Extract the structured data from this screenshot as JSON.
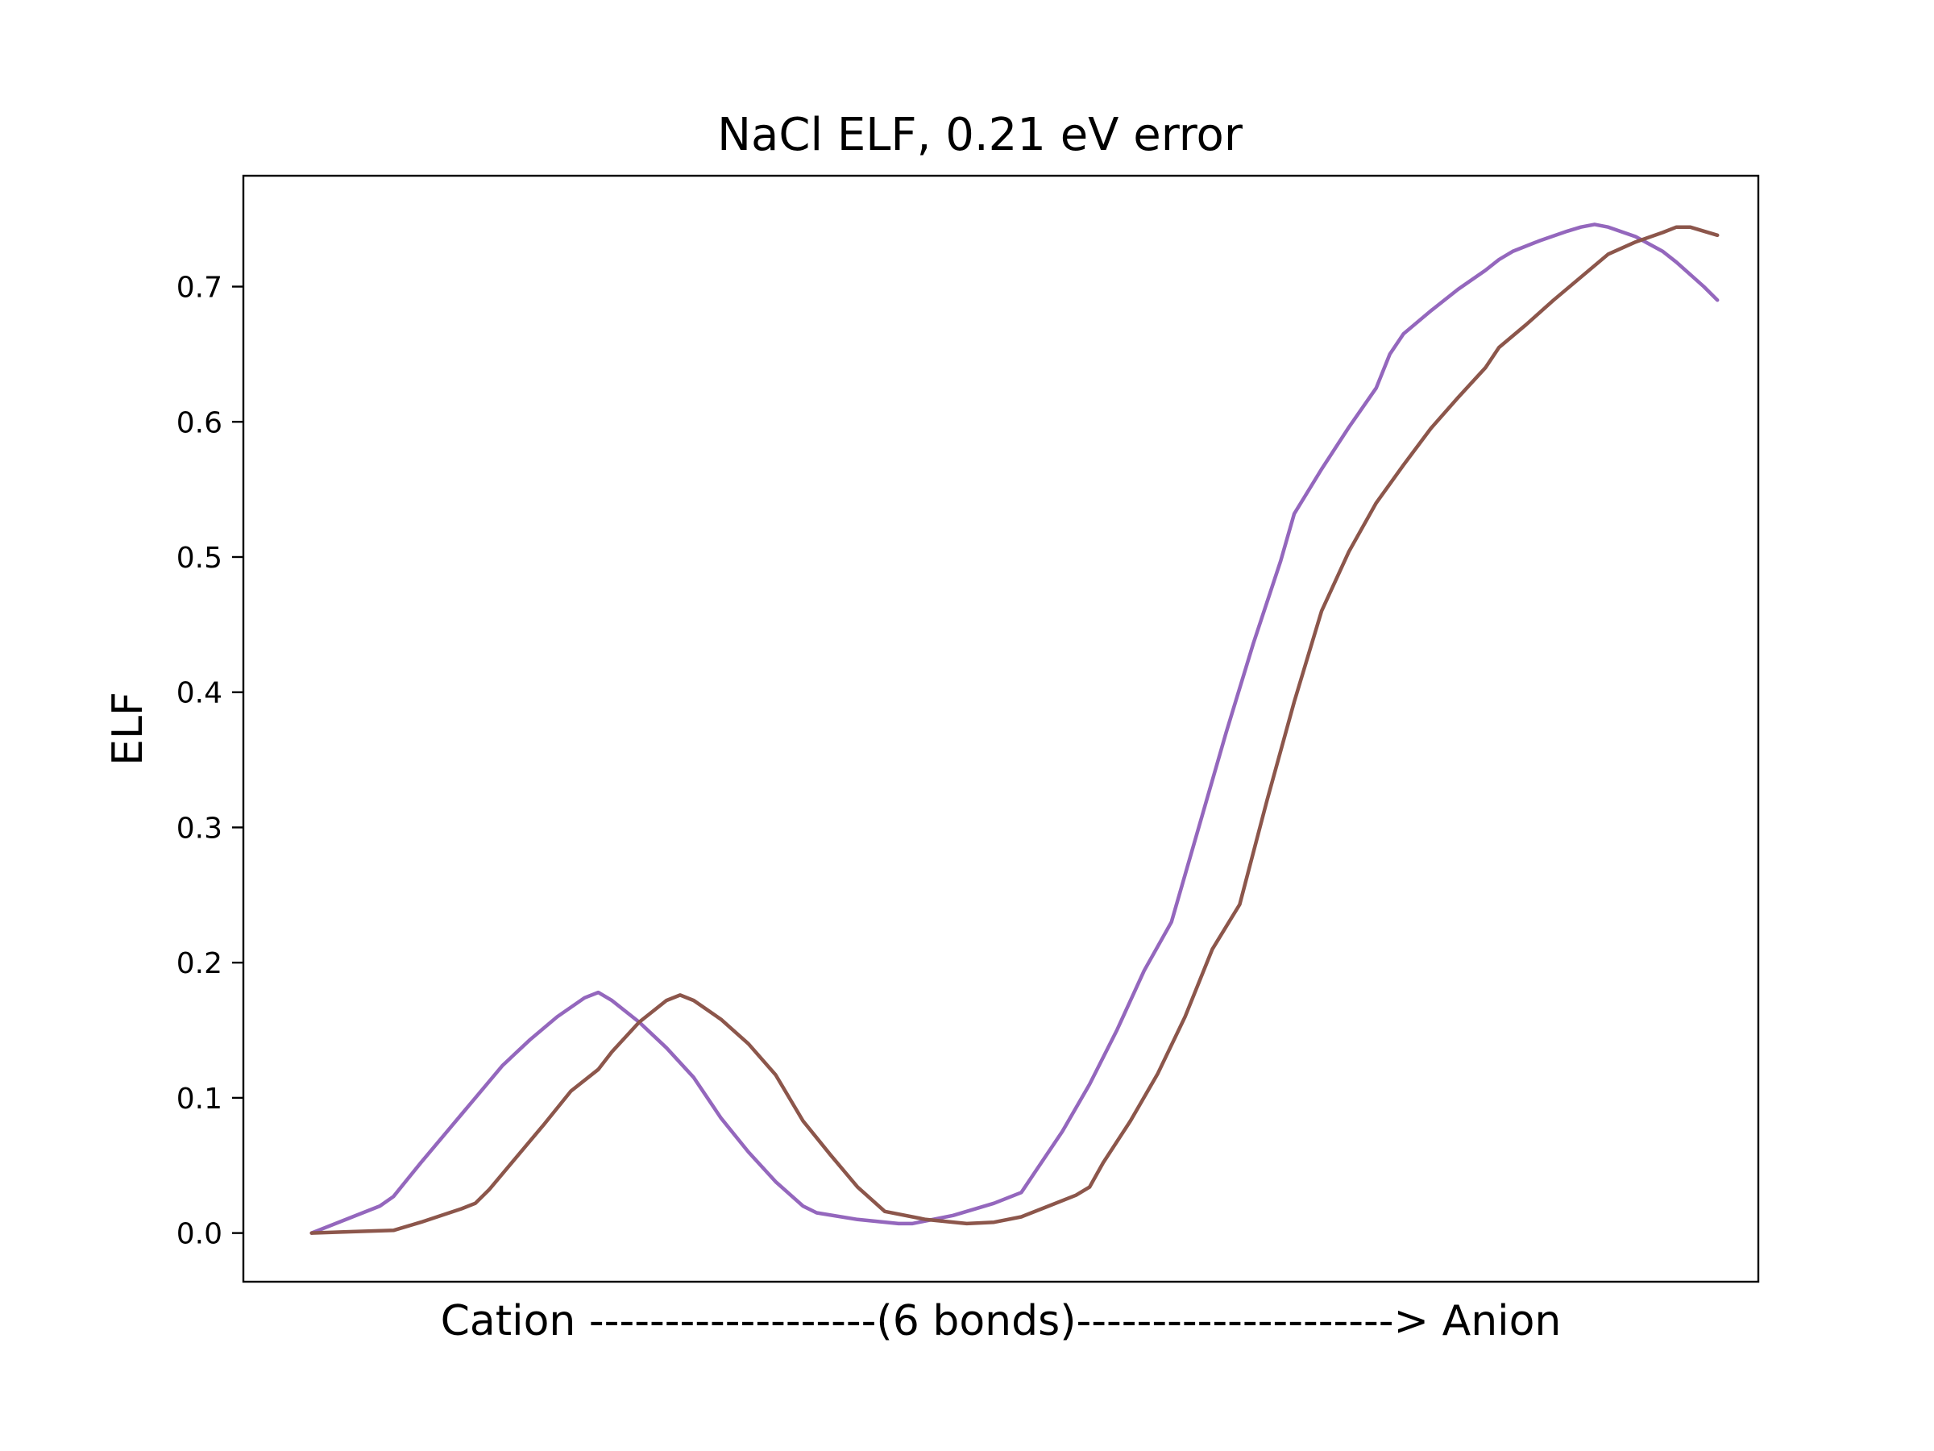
{
  "chart_data": {
    "type": "line",
    "title": "NaCl ELF, 0.21 eV error",
    "xlabel": "Cation -------------------(6 bonds)---------------------> Anion",
    "ylabel": "ELF",
    "yticks": [
      "0.0",
      "0.1",
      "0.2",
      "0.3",
      "0.4",
      "0.5",
      "0.6",
      "0.7"
    ],
    "ytick_values": [
      0.0,
      0.1,
      0.2,
      0.3,
      0.4,
      0.5,
      0.6,
      0.7
    ],
    "ylim": [
      -0.036,
      0.782
    ],
    "xlim": [
      -5,
      106
    ],
    "grid": false,
    "legend": "none",
    "series": [
      {
        "color": "#9467bd",
        "points": [
          [
            0,
            0.0
          ],
          [
            3,
            0.012
          ],
          [
            5,
            0.02
          ],
          [
            6,
            0.027
          ],
          [
            8,
            0.052
          ],
          [
            11,
            0.088
          ],
          [
            12,
            0.1
          ],
          [
            14,
            0.124
          ],
          [
            16,
            0.143
          ],
          [
            18,
            0.16
          ],
          [
            20,
            0.174
          ],
          [
            21,
            0.178
          ],
          [
            22,
            0.172
          ],
          [
            24,
            0.156
          ],
          [
            26,
            0.137
          ],
          [
            28,
            0.115
          ],
          [
            30,
            0.085
          ],
          [
            32,
            0.06
          ],
          [
            34,
            0.038
          ],
          [
            36,
            0.02
          ],
          [
            37,
            0.015
          ],
          [
            40,
            0.01
          ],
          [
            43,
            0.007
          ],
          [
            44,
            0.007
          ],
          [
            47,
            0.013
          ],
          [
            50,
            0.022
          ],
          [
            52,
            0.03
          ],
          [
            53,
            0.045
          ],
          [
            55,
            0.075
          ],
          [
            57,
            0.11
          ],
          [
            59,
            0.15
          ],
          [
            61,
            0.194
          ],
          [
            63,
            0.23
          ],
          [
            65,
            0.3
          ],
          [
            67,
            0.37
          ],
          [
            69,
            0.436
          ],
          [
            71,
            0.497
          ],
          [
            72,
            0.532
          ],
          [
            74,
            0.565
          ],
          [
            76,
            0.596
          ],
          [
            78,
            0.625
          ],
          [
            79,
            0.65
          ],
          [
            80,
            0.665
          ],
          [
            82,
            0.682
          ],
          [
            84,
            0.698
          ],
          [
            86,
            0.712
          ],
          [
            87,
            0.72
          ],
          [
            88,
            0.726
          ],
          [
            90,
            0.734
          ],
          [
            92,
            0.741
          ],
          [
            93,
            0.744
          ],
          [
            94,
            0.746
          ],
          [
            95,
            0.744
          ],
          [
            97,
            0.737
          ],
          [
            99,
            0.726
          ],
          [
            100,
            0.718
          ],
          [
            102,
            0.7
          ],
          [
            103,
            0.69
          ]
        ]
      },
      {
        "color": "#8c564b",
        "points": [
          [
            0,
            0.0
          ],
          [
            3,
            0.001
          ],
          [
            6,
            0.002
          ],
          [
            8,
            0.008
          ],
          [
            11,
            0.018
          ],
          [
            12,
            0.022
          ],
          [
            13,
            0.032
          ],
          [
            15,
            0.056
          ],
          [
            17,
            0.08
          ],
          [
            19,
            0.105
          ],
          [
            21,
            0.121
          ],
          [
            22,
            0.134
          ],
          [
            24,
            0.156
          ],
          [
            26,
            0.172
          ],
          [
            27,
            0.176
          ],
          [
            28,
            0.172
          ],
          [
            30,
            0.158
          ],
          [
            32,
            0.14
          ],
          [
            34,
            0.117
          ],
          [
            36,
            0.083
          ],
          [
            38,
            0.058
          ],
          [
            40,
            0.034
          ],
          [
            42,
            0.016
          ],
          [
            45,
            0.01
          ],
          [
            48,
            0.007
          ],
          [
            50,
            0.008
          ],
          [
            52,
            0.012
          ],
          [
            54,
            0.02
          ],
          [
            56,
            0.028
          ],
          [
            57,
            0.034
          ],
          [
            58,
            0.052
          ],
          [
            60,
            0.083
          ],
          [
            62,
            0.118
          ],
          [
            64,
            0.16
          ],
          [
            66,
            0.21
          ],
          [
            68,
            0.243
          ],
          [
            70,
            0.32
          ],
          [
            72,
            0.393
          ],
          [
            74,
            0.46
          ],
          [
            76,
            0.504
          ],
          [
            78,
            0.54
          ],
          [
            80,
            0.568
          ],
          [
            82,
            0.595
          ],
          [
            84,
            0.618
          ],
          [
            86,
            0.64
          ],
          [
            87,
            0.655
          ],
          [
            89,
            0.672
          ],
          [
            91,
            0.69
          ],
          [
            93,
            0.707
          ],
          [
            95,
            0.724
          ],
          [
            97,
            0.733
          ],
          [
            99,
            0.74
          ],
          [
            100,
            0.744
          ],
          [
            101,
            0.744
          ],
          [
            103,
            0.738
          ]
        ]
      }
    ]
  }
}
